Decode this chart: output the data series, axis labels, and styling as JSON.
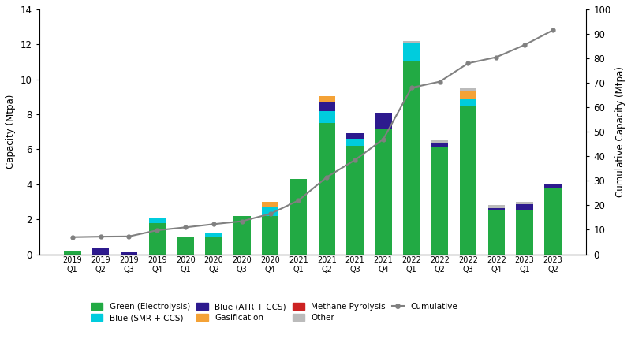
{
  "quarters": [
    "2019\nQ1",
    "2019\nQ2",
    "2019\nQ3",
    "2019\nQ4",
    "2020\nQ1",
    "2020\nQ2",
    "2020\nQ3",
    "2020\nQ4",
    "2021\nQ1",
    "2021\nQ2",
    "2021\nQ3",
    "2021\nQ4",
    "2022\nQ1",
    "2022\nQ2",
    "2022\nQ3",
    "2022\nQ4",
    "2023\nQ1",
    "2023\nQ2"
  ],
  "green": [
    0.15,
    0.0,
    0.0,
    1.8,
    1.0,
    1.0,
    2.2,
    2.2,
    4.3,
    7.5,
    6.2,
    7.2,
    11.0,
    6.1,
    8.5,
    2.5,
    2.5,
    3.8
  ],
  "blue_smr": [
    0.0,
    0.0,
    0.0,
    0.25,
    0.0,
    0.25,
    0.0,
    0.5,
    0.0,
    0.7,
    0.4,
    0.0,
    1.05,
    0.0,
    0.35,
    0.0,
    0.0,
    0.0
  ],
  "blue_atr": [
    0.0,
    0.35,
    0.1,
    0.0,
    0.0,
    0.0,
    0.0,
    0.0,
    0.0,
    0.5,
    0.3,
    0.9,
    0.0,
    0.3,
    0.0,
    0.15,
    0.35,
    0.22
  ],
  "gasification": [
    0.0,
    0.0,
    0.0,
    0.0,
    0.0,
    0.0,
    0.0,
    0.3,
    0.0,
    0.35,
    0.0,
    0.0,
    0.0,
    0.0,
    0.5,
    0.0,
    0.0,
    0.0
  ],
  "methane_pyrolysis": [
    0.0,
    0.0,
    0.0,
    0.0,
    0.0,
    0.0,
    0.0,
    0.0,
    0.0,
    0.0,
    0.0,
    0.0,
    0.0,
    0.0,
    0.0,
    0.0,
    0.0,
    0.0
  ],
  "other": [
    0.0,
    0.0,
    0.0,
    0.0,
    0.0,
    0.0,
    0.0,
    0.0,
    0.0,
    0.0,
    0.0,
    0.0,
    0.15,
    0.15,
    0.15,
    0.15,
    0.15,
    0.0
  ],
  "cumulative": [
    7.0,
    7.2,
    7.3,
    9.8,
    11.0,
    12.3,
    13.5,
    16.5,
    22.0,
    31.5,
    38.5,
    47.0,
    68.0,
    70.5,
    78.0,
    80.5,
    85.5,
    91.5
  ],
  "colors": {
    "green": "#22aa44",
    "blue_smr": "#00ccdd",
    "blue_atr": "#2d1a8e",
    "gasification": "#f4a236",
    "methane_pyrolysis": "#cc2222",
    "other": "#bbbbbb",
    "cumulative": "#808080"
  },
  "ylim_left": [
    0,
    14
  ],
  "ylim_right": [
    0,
    100
  ],
  "yticks_left": [
    0,
    2,
    4,
    6,
    8,
    10,
    12,
    14
  ],
  "yticks_right": [
    0,
    10,
    20,
    30,
    40,
    50,
    60,
    70,
    80,
    90,
    100
  ],
  "ylabel_left": "Capacity (Mtpa)",
  "ylabel_right": "Cumulative Capacity (Mtpa)",
  "legend_labels": [
    "Green (Electrolysis)",
    "Blue (SMR + CCS)",
    "Blue (ATR + CCS)",
    "Gasification",
    "Methane Pyrolysis",
    "Other",
    "Cumulative"
  ]
}
